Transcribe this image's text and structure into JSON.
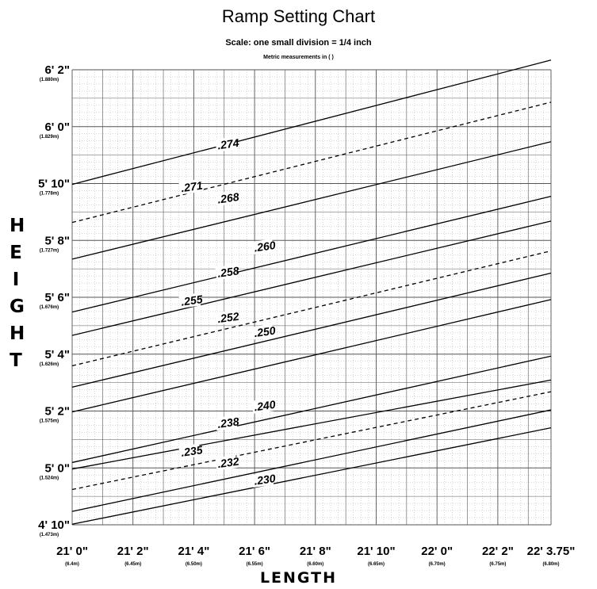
{
  "title": "Ramp Setting Chart",
  "subtitle": "Scale: one small division = 1/4 inch",
  "note": "Metric measurements in ( )",
  "ylabel_letters": [
    "H",
    "E",
    "I",
    "G",
    "H",
    "T"
  ],
  "xlabel": "LENGTH",
  "chart_data": {
    "type": "line",
    "title": "Ramp Setting Chart",
    "xlabel": "LENGTH",
    "ylabel": "HEIGHT",
    "xlim": [
      252,
      267.75
    ],
    "ylim": [
      58,
      74
    ],
    "grid": true,
    "x_ticks": [
      {
        "value": 252,
        "label": "21' 0\"",
        "metric": "(6.4m)"
      },
      {
        "value": 254,
        "label": "21' 2\"",
        "metric": "(6.45m)"
      },
      {
        "value": 256,
        "label": "21' 4\"",
        "metric": "(6.50m)"
      },
      {
        "value": 258,
        "label": "21' 6\"",
        "metric": "(6.55m)"
      },
      {
        "value": 260,
        "label": "21' 8\"",
        "metric": "(6.60m)"
      },
      {
        "value": 262,
        "label": "21' 10\"",
        "metric": "(6.65m)"
      },
      {
        "value": 264,
        "label": "22' 0\"",
        "metric": "(6.70m)"
      },
      {
        "value": 266,
        "label": "22' 2\"",
        "metric": "(6.75m)"
      },
      {
        "value": 267.75,
        "label": "22' 3.75\"",
        "metric": "(6.80m)"
      }
    ],
    "y_ticks": [
      {
        "value": 74,
        "label": "6' 2\"",
        "metric": "(1.880m)"
      },
      {
        "value": 72,
        "label": "6' 0\"",
        "metric": "(1.829m)"
      },
      {
        "value": 70,
        "label": "5' 10\"",
        "metric": "(1.778m)"
      },
      {
        "value": 68,
        "label": "5' 8\"",
        "metric": "(1.727m)"
      },
      {
        "value": 66,
        "label": "5' 6\"",
        "metric": "(1.676m)"
      },
      {
        "value": 64,
        "label": "5' 4\"",
        "metric": "(1.626m)"
      },
      {
        "value": 62,
        "label": "5' 2\"",
        "metric": "(1.575m)"
      },
      {
        "value": 60,
        "label": "5' 0\"",
        "metric": "(1.524m)"
      },
      {
        "value": 58,
        "label": "4' 10\"",
        "metric": "(1.473m)"
      }
    ],
    "series": [
      {
        "name": ".274",
        "style": "solid",
        "x": [
          252,
          267.75
        ],
        "y": [
          69.97,
          74.34
        ],
        "label_at": [
          256.8,
          71.2
        ]
      },
      {
        "name": ".271",
        "style": "dashed",
        "x": [
          252,
          267.75
        ],
        "y": [
          68.63,
          72.86
        ],
        "label_at": [
          255.6,
          69.7
        ]
      },
      {
        "name": ".268",
        "style": "solid",
        "x": [
          252,
          267.75
        ],
        "y": [
          67.34,
          71.47
        ],
        "label_at": [
          256.8,
          69.3
        ]
      },
      {
        "name": ".260",
        "style": "solid",
        "x": [
          252,
          267.75
        ],
        "y": [
          65.48,
          69.55
        ],
        "label_at": [
          258.0,
          67.6
        ]
      },
      {
        "name": ".258",
        "style": "solid",
        "x": [
          252,
          267.75
        ],
        "y": [
          64.66,
          68.68
        ],
        "label_at": [
          256.8,
          66.7
        ]
      },
      {
        "name": ".255",
        "style": "dashed",
        "x": [
          252,
          267.75
        ],
        "y": [
          63.59,
          67.63
        ],
        "label_at": [
          255.6,
          65.7
        ]
      },
      {
        "name": ".252",
        "style": "solid",
        "x": [
          252,
          267.75
        ],
        "y": [
          62.84,
          66.85
        ],
        "label_at": [
          256.8,
          65.1
        ]
      },
      {
        "name": ".250",
        "style": "solid",
        "x": [
          252,
          267.75
        ],
        "y": [
          61.97,
          65.92
        ],
        "label_at": [
          258.0,
          64.6
        ]
      },
      {
        "name": ".240",
        "style": "solid",
        "x": [
          252,
          267.75
        ],
        "y": [
          60.19,
          63.93
        ],
        "label_at": [
          258.0,
          62.0
        ]
      },
      {
        "name": ".238",
        "style": "solid",
        "x": [
          252,
          267.75
        ],
        "y": [
          59.96,
          63.09
        ],
        "label_at": [
          256.8,
          61.4
        ]
      },
      {
        "name": ".235",
        "style": "dashed",
        "x": [
          252,
          267.75
        ],
        "y": [
          59.24,
          62.68
        ],
        "label_at": [
          255.6,
          60.4
        ]
      },
      {
        "name": ".232",
        "style": "solid",
        "x": [
          252,
          267.75
        ],
        "y": [
          58.47,
          62.04
        ],
        "label_at": [
          256.8,
          60.0
        ]
      },
      {
        "name": ".230",
        "style": "solid",
        "x": [
          252,
          267.75
        ],
        "y": [
          58.02,
          61.41
        ],
        "label_at": [
          258.0,
          59.4
        ]
      }
    ]
  }
}
